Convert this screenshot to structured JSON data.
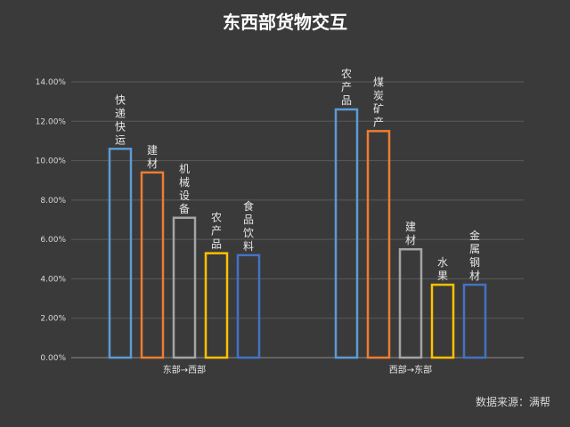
{
  "chart_data": {
    "type": "bar",
    "title": "东西部货物交互",
    "source": "数据来源：满帮",
    "ylim": [
      0,
      0.14
    ],
    "yticks": [
      "0.00%",
      "2.00%",
      "4.00%",
      "6.00%",
      "8.00%",
      "10.00%",
      "12.00%",
      "14.00%"
    ],
    "grid": true,
    "groups": [
      {
        "name": "东部→西部",
        "bars": [
          {
            "label": "快递快运",
            "value": 0.106,
            "color": "#5b9bd5"
          },
          {
            "label": "建材",
            "value": 0.094,
            "color": "#ed7d31"
          },
          {
            "label": "机械设备",
            "value": 0.071,
            "color": "#a5a5a5"
          },
          {
            "label": "农产品",
            "value": 0.053,
            "color": "#ffc000"
          },
          {
            "label": "食品饮料",
            "value": 0.052,
            "color": "#4472c4"
          }
        ]
      },
      {
        "name": "西部→东部",
        "bars": [
          {
            "label": "农产品",
            "value": 0.126,
            "color": "#5b9bd5"
          },
          {
            "label": "煤炭矿产",
            "value": 0.115,
            "color": "#ed7d31"
          },
          {
            "label": "建材",
            "value": 0.055,
            "color": "#a5a5a5"
          },
          {
            "label": "水果",
            "value": 0.037,
            "color": "#ffc000"
          },
          {
            "label": "金属钢材",
            "value": 0.037,
            "color": "#4472c4"
          }
        ]
      }
    ]
  }
}
